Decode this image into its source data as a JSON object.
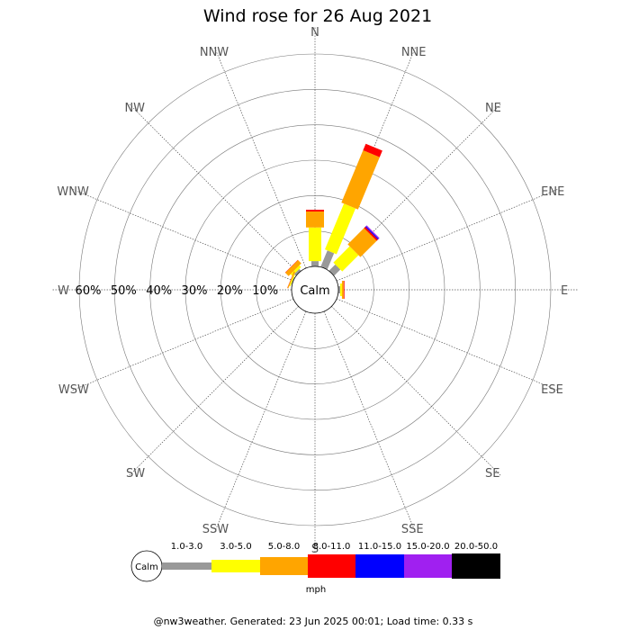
{
  "chart_data": {
    "type": "wind-rose",
    "title": "Wind rose for 26 Aug 2021",
    "directions": [
      "N",
      "NNE",
      "NE",
      "ENE",
      "E",
      "ESE",
      "SE",
      "SSE",
      "S",
      "SSW",
      "SW",
      "WSW",
      "W",
      "WNW",
      "NW",
      "NNW"
    ],
    "radial_axis": {
      "labels": [
        "10%",
        "20%",
        "30%",
        "40%",
        "50%",
        "60%"
      ],
      "ticks": [
        10,
        20,
        30,
        40,
        50,
        60
      ],
      "max": 60
    },
    "calm_label": "Calm",
    "speed_bins": [
      {
        "label": "1.0-3.0",
        "color": "#999999"
      },
      {
        "label": "3.0-5.0",
        "color": "#ffff00"
      },
      {
        "label": "5.0-8.0",
        "color": "#ffa500"
      },
      {
        "label": "8.0-11.0",
        "color": "#ff0000"
      },
      {
        "label": "11.0-15.0",
        "color": "#0000ff"
      },
      {
        "label": "15.0-20.0",
        "color": "#a020f0"
      },
      {
        "label": "20.0-50.0",
        "color": "#000000"
      }
    ],
    "units": "mph",
    "series": [
      {
        "direction": "N",
        "values": [
          1.5,
          9.5,
          4.5,
          0.5,
          0,
          0,
          0
        ]
      },
      {
        "direction": "NNE",
        "values": [
          5,
          14,
          16,
          2,
          0,
          0,
          0
        ]
      },
      {
        "direction": "NE",
        "values": [
          2.5,
          6.5,
          6.5,
          0.5,
          0.3,
          0.3,
          0
        ]
      },
      {
        "direction": "E",
        "values": [
          0.5,
          0.5,
          0.5,
          0.2,
          0,
          0,
          0
        ]
      },
      {
        "direction": "NW",
        "values": [
          0.7,
          0.7,
          1.3,
          0.1,
          0,
          0,
          0
        ]
      },
      {
        "direction": "WNW",
        "values": [
          0.2,
          0.3,
          0.3,
          0.05,
          0,
          0,
          0
        ]
      }
    ]
  },
  "footer": "@nw3weather. Generated: 23 Jun 2025 00:01; Load time: 0.33 s"
}
